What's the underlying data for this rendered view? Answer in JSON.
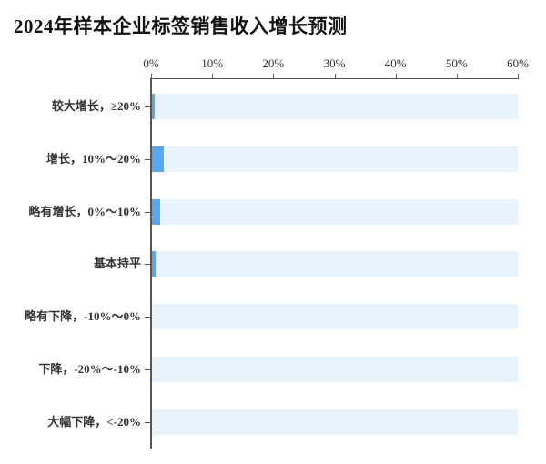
{
  "title": "2024年样本企业标签销售收入增长预测",
  "chart_data": {
    "type": "bar",
    "orientation": "horizontal",
    "title": "2024年样本企业标签销售收入增长预测",
    "categories": [
      "较大增长，≥20%",
      "增长，10%～20%",
      "略有增长，0%～10%",
      "基本持平",
      "略有下降，-10%～0%",
      "下降，-20%～-10%",
      "大幅下降，<-20%"
    ],
    "values": [
      0.4,
      1.9,
      1.3,
      0.6,
      0,
      0,
      0
    ],
    "x_axis": {
      "position": "top",
      "min": 0,
      "max": 60,
      "tick_labels": [
        "0%",
        "10%",
        "20%",
        "30%",
        "40%",
        "50%",
        "60%"
      ],
      "unit": "%"
    },
    "ylabel": "",
    "xlabel": "",
    "legend": "none",
    "grid": false,
    "bar_background_track": true,
    "colors": {
      "bar": "#57a8f0",
      "track": "#e9f3fd",
      "axis": "#555555",
      "tick_label": "#333333",
      "category_label": "#333333",
      "title": "#121212",
      "background": "#ffffff"
    }
  }
}
